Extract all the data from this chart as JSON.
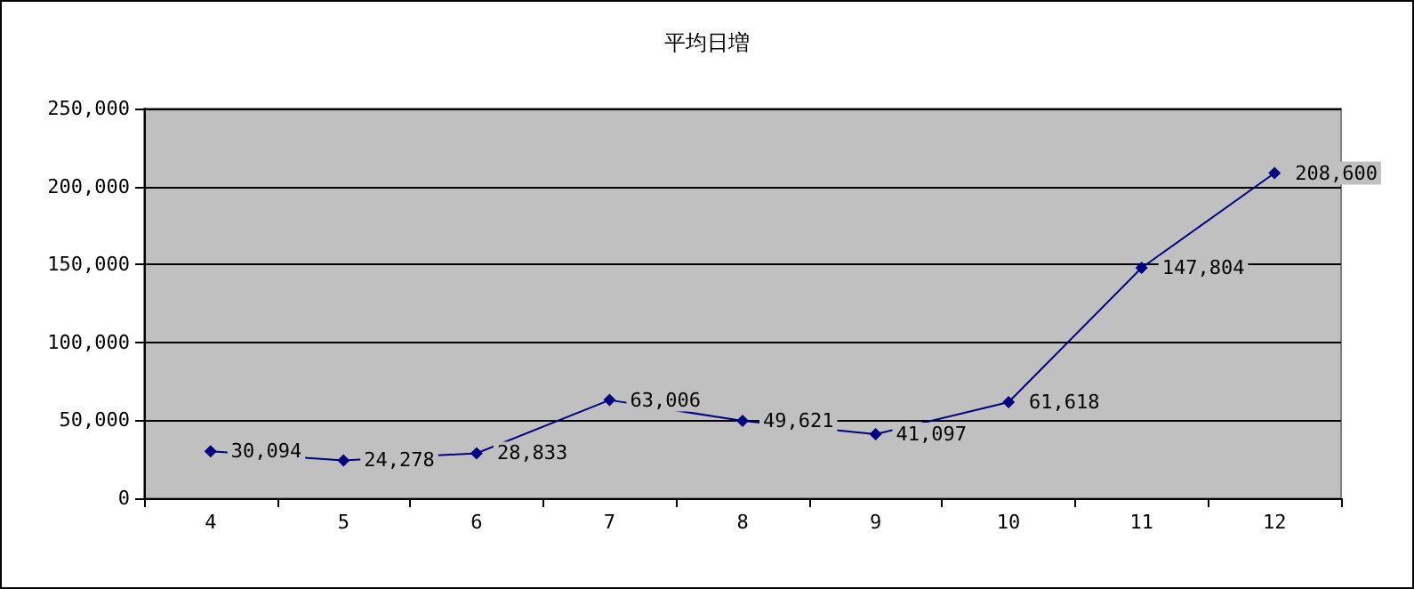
{
  "chart_data": {
    "type": "line",
    "title": "平均日増",
    "categories": [
      "4",
      "5",
      "6",
      "7",
      "8",
      "9",
      "10",
      "11",
      "12"
    ],
    "series": [
      {
        "color": "#000080",
        "values": [
          30094,
          24278,
          28833,
          63006,
          49621,
          41097,
          61618,
          147804,
          208600
        ],
        "value_labels": [
          "30,094",
          "24,278",
          "28,833",
          "63,006",
          "49,621",
          "41,097",
          "61,618",
          "147,804",
          "208,600"
        ]
      }
    ],
    "ylim": [
      0,
      250000
    ],
    "yticks": [
      0,
      {
        "value": 50000,
        "label": "50,000"
      },
      {
        "value": 100000,
        "label": "100,000"
      },
      {
        "value": 150000,
        "label": "150,000"
      },
      {
        "value": 200000,
        "label": "200,000"
      },
      {
        "value": 250000,
        "label": "250,000"
      }
    ],
    "grid": "y",
    "marker": "diamond",
    "line_style": "solid"
  }
}
